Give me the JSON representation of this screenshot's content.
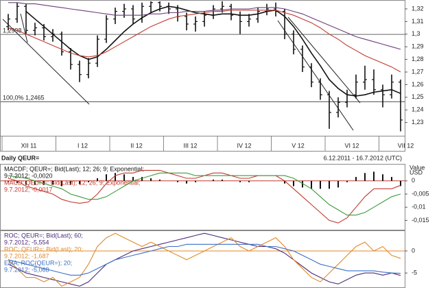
{
  "chart_data": [
    {
      "type": "ohlc",
      "ohlc": [
        [
          1.306,
          1.316,
          1.303,
          1.312
        ],
        [
          1.312,
          1.325,
          1.309,
          1.322
        ],
        [
          1.322,
          1.324,
          1.3,
          1.303
        ],
        [
          1.303,
          1.309,
          1.299,
          1.305
        ],
        [
          1.305,
          1.308,
          1.295,
          1.298
        ],
        [
          1.298,
          1.304,
          1.294,
          1.3
        ],
        [
          1.3,
          1.302,
          1.283,
          1.286
        ],
        [
          1.286,
          1.289,
          1.272,
          1.276
        ],
        [
          1.276,
          1.279,
          1.262,
          1.268
        ],
        [
          1.268,
          1.281,
          1.265,
          1.277
        ],
        [
          1.277,
          1.299,
          1.274,
          1.296
        ],
        [
          1.296,
          1.315,
          1.293,
          1.312
        ],
        [
          1.312,
          1.321,
          1.308,
          1.318
        ],
        [
          1.318,
          1.324,
          1.313,
          1.32
        ],
        [
          1.32,
          1.323,
          1.308,
          1.312
        ],
        [
          1.312,
          1.325,
          1.309,
          1.322
        ],
        [
          1.322,
          1.326,
          1.317,
          1.325
        ],
        [
          1.325,
          1.326,
          1.318,
          1.322
        ],
        [
          1.322,
          1.325,
          1.316,
          1.32
        ],
        [
          1.32,
          1.323,
          1.31,
          1.314
        ],
        [
          1.314,
          1.317,
          1.303,
          1.308
        ],
        [
          1.308,
          1.314,
          1.302,
          1.31
        ],
        [
          1.31,
          1.318,
          1.306,
          1.315
        ],
        [
          1.315,
          1.323,
          1.312,
          1.32
        ],
        [
          1.32,
          1.326,
          1.317,
          1.322
        ],
        [
          1.322,
          1.324,
          1.311,
          1.315
        ],
        [
          1.315,
          1.318,
          1.3,
          1.31
        ],
        [
          1.31,
          1.316,
          1.306,
          1.312
        ],
        [
          1.312,
          1.321,
          1.309,
          1.318
        ],
        [
          1.318,
          1.324,
          1.315,
          1.32
        ],
        [
          1.32,
          1.325,
          1.314,
          1.318
        ],
        [
          1.318,
          1.32,
          1.296,
          1.3
        ],
        [
          1.3,
          1.303,
          1.284,
          1.288
        ],
        [
          1.288,
          1.291,
          1.27,
          1.274
        ],
        [
          1.274,
          1.277,
          1.258,
          1.262
        ],
        [
          1.262,
          1.265,
          1.248,
          1.252
        ],
        [
          1.252,
          1.255,
          1.225,
          1.238
        ],
        [
          1.238,
          1.25,
          1.234,
          1.246
        ],
        [
          1.246,
          1.256,
          1.242,
          1.252
        ],
        [
          1.252,
          1.268,
          1.249,
          1.262
        ],
        [
          1.262,
          1.275,
          1.256,
          1.264
        ],
        [
          1.264,
          1.272,
          1.252,
          1.256
        ],
        [
          1.256,
          1.26,
          1.242,
          1.252
        ],
        [
          1.252,
          1.268,
          1.249,
          1.262
        ],
        [
          1.262,
          1.264,
          1.223,
          1.232
        ]
      ],
      "bar_color": "#111111",
      "series": [
        {
          "color": "#111111",
          "values": [
            null,
            null,
            1.318,
            1.312,
            1.306,
            1.3,
            1.294,
            1.288,
            1.283,
            1.28,
            1.282,
            1.288,
            1.295,
            1.302,
            1.308,
            1.313,
            1.317,
            1.32,
            1.322,
            1.321,
            1.319,
            1.317,
            1.316,
            1.315,
            1.316,
            1.316,
            1.315,
            1.315,
            1.316,
            1.318,
            1.319,
            1.314,
            1.306,
            1.296,
            1.285,
            1.275,
            1.264,
            1.257,
            1.252,
            1.251,
            1.252,
            1.254,
            1.255,
            1.256,
            1.253
          ]
        },
        {
          "color": "#c0392b",
          "values": [
            1.305,
            1.303,
            1.3,
            1.297,
            1.294,
            1.291,
            1.288,
            1.285,
            1.283,
            1.282,
            1.283,
            1.286,
            1.29,
            1.294,
            1.298,
            1.302,
            1.306,
            1.309,
            1.312,
            1.314,
            1.315,
            1.316,
            1.317,
            1.318,
            1.318,
            1.319,
            1.319,
            1.319,
            1.319,
            1.319,
            1.319,
            1.317,
            1.315,
            1.312,
            1.309,
            1.305,
            1.3,
            1.296,
            1.291,
            1.287,
            1.283,
            1.28,
            1.277,
            1.274,
            1.27
          ]
        },
        {
          "color": "#6a3d7a",
          "values": [
            1.325,
            1.325,
            1.324,
            1.324,
            1.323,
            1.322,
            1.321,
            1.32,
            1.319,
            1.318,
            1.317,
            1.316,
            1.315,
            1.315,
            1.315,
            1.315,
            1.316,
            1.316,
            1.317,
            1.317,
            1.318,
            1.318,
            1.318,
            1.319,
            1.319,
            1.32,
            1.32,
            1.32,
            1.321,
            1.321,
            1.321,
            1.32,
            1.318,
            1.316,
            1.313,
            1.31,
            1.307,
            1.304,
            1.301,
            1.298,
            1.296,
            1.294,
            1.292,
            1.29,
            1.288
          ]
        }
      ],
      "levels": [
        {
          "value": 1.2998,
          "label": "1,2998"
        },
        {
          "value": 1.2465,
          "label": "100,0% 1,2465"
        }
      ],
      "months": [
        "XII 11",
        "I 12",
        "II 12",
        "III 12",
        "IV 12",
        "V 12",
        "VI 12",
        "VII 12"
      ],
      "ylim": [
        1.2195,
        1.3265
      ],
      "yticks": [
        {
          "value": 1.32,
          "label": "1,32"
        },
        {
          "value": 1.31,
          "label": "1,31"
        },
        {
          "value": 1.3,
          "label": "1,3"
        },
        {
          "value": 1.29,
          "label": "1,29"
        },
        {
          "value": 1.28,
          "label": "1,28"
        },
        {
          "value": 1.27,
          "label": "1,27"
        },
        {
          "value": 1.26,
          "label": "1,26"
        },
        {
          "value": 1.25,
          "label": "1,25"
        },
        {
          "value": 1.24,
          "label": "1,24"
        },
        {
          "value": 1.23,
          "label": "1,23"
        }
      ]
    },
    {
      "type": "indicator",
      "title": "Daily QEUR=",
      "subtitle": "6.12.2011 - 16.7.2012 (UTC)",
      "ylabel_lines": [
        "Value",
        "USD"
      ],
      "zero_color": "#c0392b",
      "series": [
        {
          "name": "MACDF; QEUR=; Bid(Last); 12; 26; 9; Exponential;",
          "last_label": "9.7.2012; -0,0020",
          "color": "#111111",
          "style": "bars",
          "values": [
            -0.0005,
            -0.0008,
            -0.0015,
            -0.0015,
            -0.0015,
            -0.0015,
            -0.002,
            -0.0015,
            -0.0012,
            -0.0005,
            0.001,
            0.0025,
            0.003,
            0.0025,
            0.0015,
            0.0015,
            0.001,
            0.0005,
            0,
            -0.0005,
            -0.001,
            -0.0005,
            0,
            0.0005,
            0.0005,
            0,
            -0.0005,
            -0.0005,
            0,
            0,
            0,
            -0.001,
            -0.002,
            -0.0025,
            -0.003,
            -0.003,
            -0.003,
            -0.0025,
            -0.0005,
            0.0015,
            0.003,
            0.0035,
            0.0025,
            0.0015,
            -0.002
          ]
        },
        {
          "name": "MACD; QEUR=; Bid(Last); 12; 26; 9; Exponential;",
          "last_label": "9.7.2012; -0,0017",
          "color": "#c0392b",
          "values": [
            0.001,
            0,
            -0.002,
            -0.003,
            -0.004,
            -0.005,
            -0.007,
            -0.008,
            -0.0085,
            -0.008,
            -0.005,
            -0.001,
            0.002,
            0.003,
            0.003,
            0.004,
            0.004,
            0.004,
            0.003,
            0.002,
            0.001,
            0.001,
            0.002,
            0.003,
            0.003,
            0.002,
            0.001,
            0.001,
            0.002,
            0.002,
            0.002,
            0,
            -0.003,
            -0.006,
            -0.009,
            -0.012,
            -0.015,
            -0.016,
            -0.014,
            -0.01,
            -0.006,
            -0.003,
            -0.003,
            -0.003,
            -0.0017
          ]
        },
        {
          "color": "#3a9a3a",
          "values": [
            0.002,
            0.0015,
            0.001,
            0,
            -0.001,
            -0.002,
            -0.003,
            -0.005,
            -0.006,
            -0.007,
            -0.007,
            -0.006,
            -0.004,
            -0.002,
            0,
            0.001,
            0.002,
            0.003,
            0.003,
            0.003,
            0.003,
            0.002,
            0.002,
            0.002,
            0.002,
            0.002,
            0.002,
            0.002,
            0.002,
            0.002,
            0.002,
            0.002,
            0.001,
            -0.001,
            -0.003,
            -0.006,
            -0.009,
            -0.011,
            -0.013,
            -0.013,
            -0.012,
            -0.01,
            -0.008,
            -0.006,
            -0.005
          ]
        }
      ],
      "ylim": [
        -0.0188,
        0.0062
      ],
      "yticks": [
        0,
        {
          "value": -0.005,
          "label": "-0,005"
        },
        {
          "value": -0.01,
          "label": "-0,01"
        },
        {
          "value": -0.015,
          "label": "-0,015"
        }
      ]
    },
    {
      "type": "indicator",
      "zero_color": "#e08a2a",
      "series": [
        {
          "name": "ROC; QEUR=; Bid(Last); 60;",
          "last_label": "9.7.2012; -5,554",
          "color": "#4b2a7a",
          "values": [
            -3,
            -4,
            -5,
            -5.5,
            -6,
            -6.5,
            -7,
            -7.5,
            -8,
            -7,
            -5,
            -3,
            -2,
            -1,
            0,
            0.5,
            1,
            1.5,
            2,
            2.5,
            3,
            3.5,
            4,
            3.5,
            3,
            2.5,
            2,
            1.5,
            1,
            1,
            0.5,
            -0.5,
            -2,
            -3.5,
            -5,
            -6,
            -7,
            -7.5,
            -6.5,
            -5.5,
            -5,
            -5,
            -5.5,
            -5,
            -5.554
          ]
        },
        {
          "name": "ROC; QEUR=; Bid(Last); 20;",
          "last_label": "9.7.2012; -1,687",
          "color": "#e08a2a",
          "values": [
            -2,
            -4,
            -6,
            -6,
            -7,
            -6,
            -8,
            -7,
            -6,
            -3,
            1,
            3,
            4,
            3,
            2,
            1,
            2,
            1,
            0,
            -1,
            -2,
            -1,
            0,
            1,
            2,
            3,
            1,
            0,
            1,
            2,
            3,
            1,
            -2,
            -4,
            -6,
            -7,
            -5,
            -3,
            -1,
            1,
            2,
            0,
            1,
            -1,
            -1.687
          ]
        },
        {
          "name": "EMA; ROC(QEUR=); 20;",
          "last_label": "9.7.2012; -5,068",
          "color": "#3b6fc4",
          "values": [
            -2,
            -2.5,
            -3,
            -3.5,
            -4,
            -4.5,
            -5,
            -5.5,
            -5.5,
            -5,
            -4,
            -3,
            -2,
            -1.5,
            -1,
            -0.5,
            0,
            0.5,
            1,
            1,
            1.5,
            1.5,
            1.5,
            1.5,
            1.5,
            1.5,
            1.5,
            1.5,
            1.5,
            1,
            1,
            0.5,
            0,
            -1,
            -2,
            -3,
            -3.5,
            -4,
            -4.5,
            -4.5,
            -4.5,
            -4.5,
            -4.8,
            -5,
            -5.068
          ]
        }
      ],
      "ylim": [
        -8.4,
        4.5
      ],
      "yticks": [
        0,
        -5
      ]
    }
  ]
}
